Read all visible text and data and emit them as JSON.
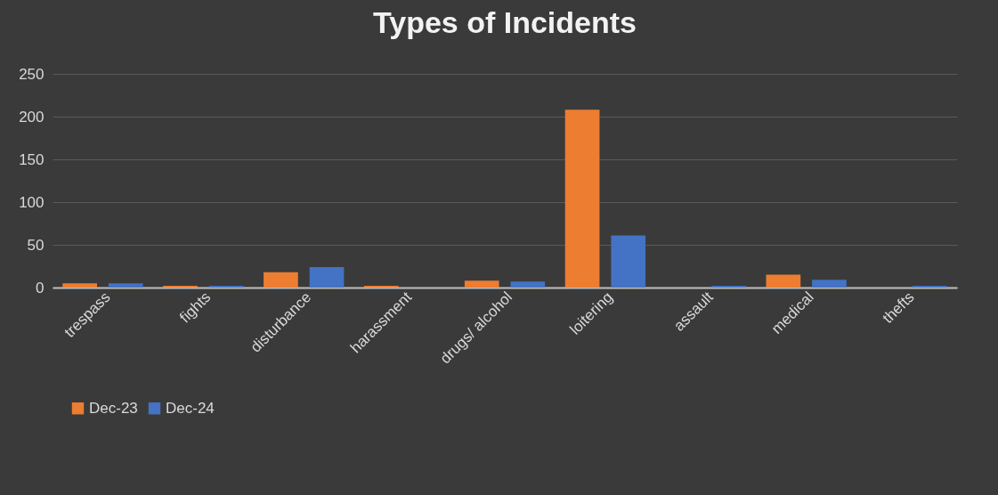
{
  "chart_data": {
    "type": "bar",
    "title": "Types of Incidents",
    "categories": [
      "trespass",
      "fights",
      "disturbance",
      "harassment",
      "drugs/ alcohol",
      "loitering",
      "assault",
      "medical",
      "thefts"
    ],
    "series": [
      {
        "name": "Dec-23",
        "color": "#ed7d31",
        "values": [
          5,
          2,
          18,
          2,
          8,
          208,
          0,
          15,
          0
        ]
      },
      {
        "name": "Dec-24",
        "color": "#4472c4",
        "values": [
          5,
          2,
          24,
          0,
          7,
          61,
          2,
          9,
          2
        ]
      }
    ],
    "ylim": [
      0,
      250
    ],
    "yticks": [
      0,
      50,
      100,
      150,
      200,
      250
    ],
    "grid": "y",
    "legend": "bottom"
  }
}
